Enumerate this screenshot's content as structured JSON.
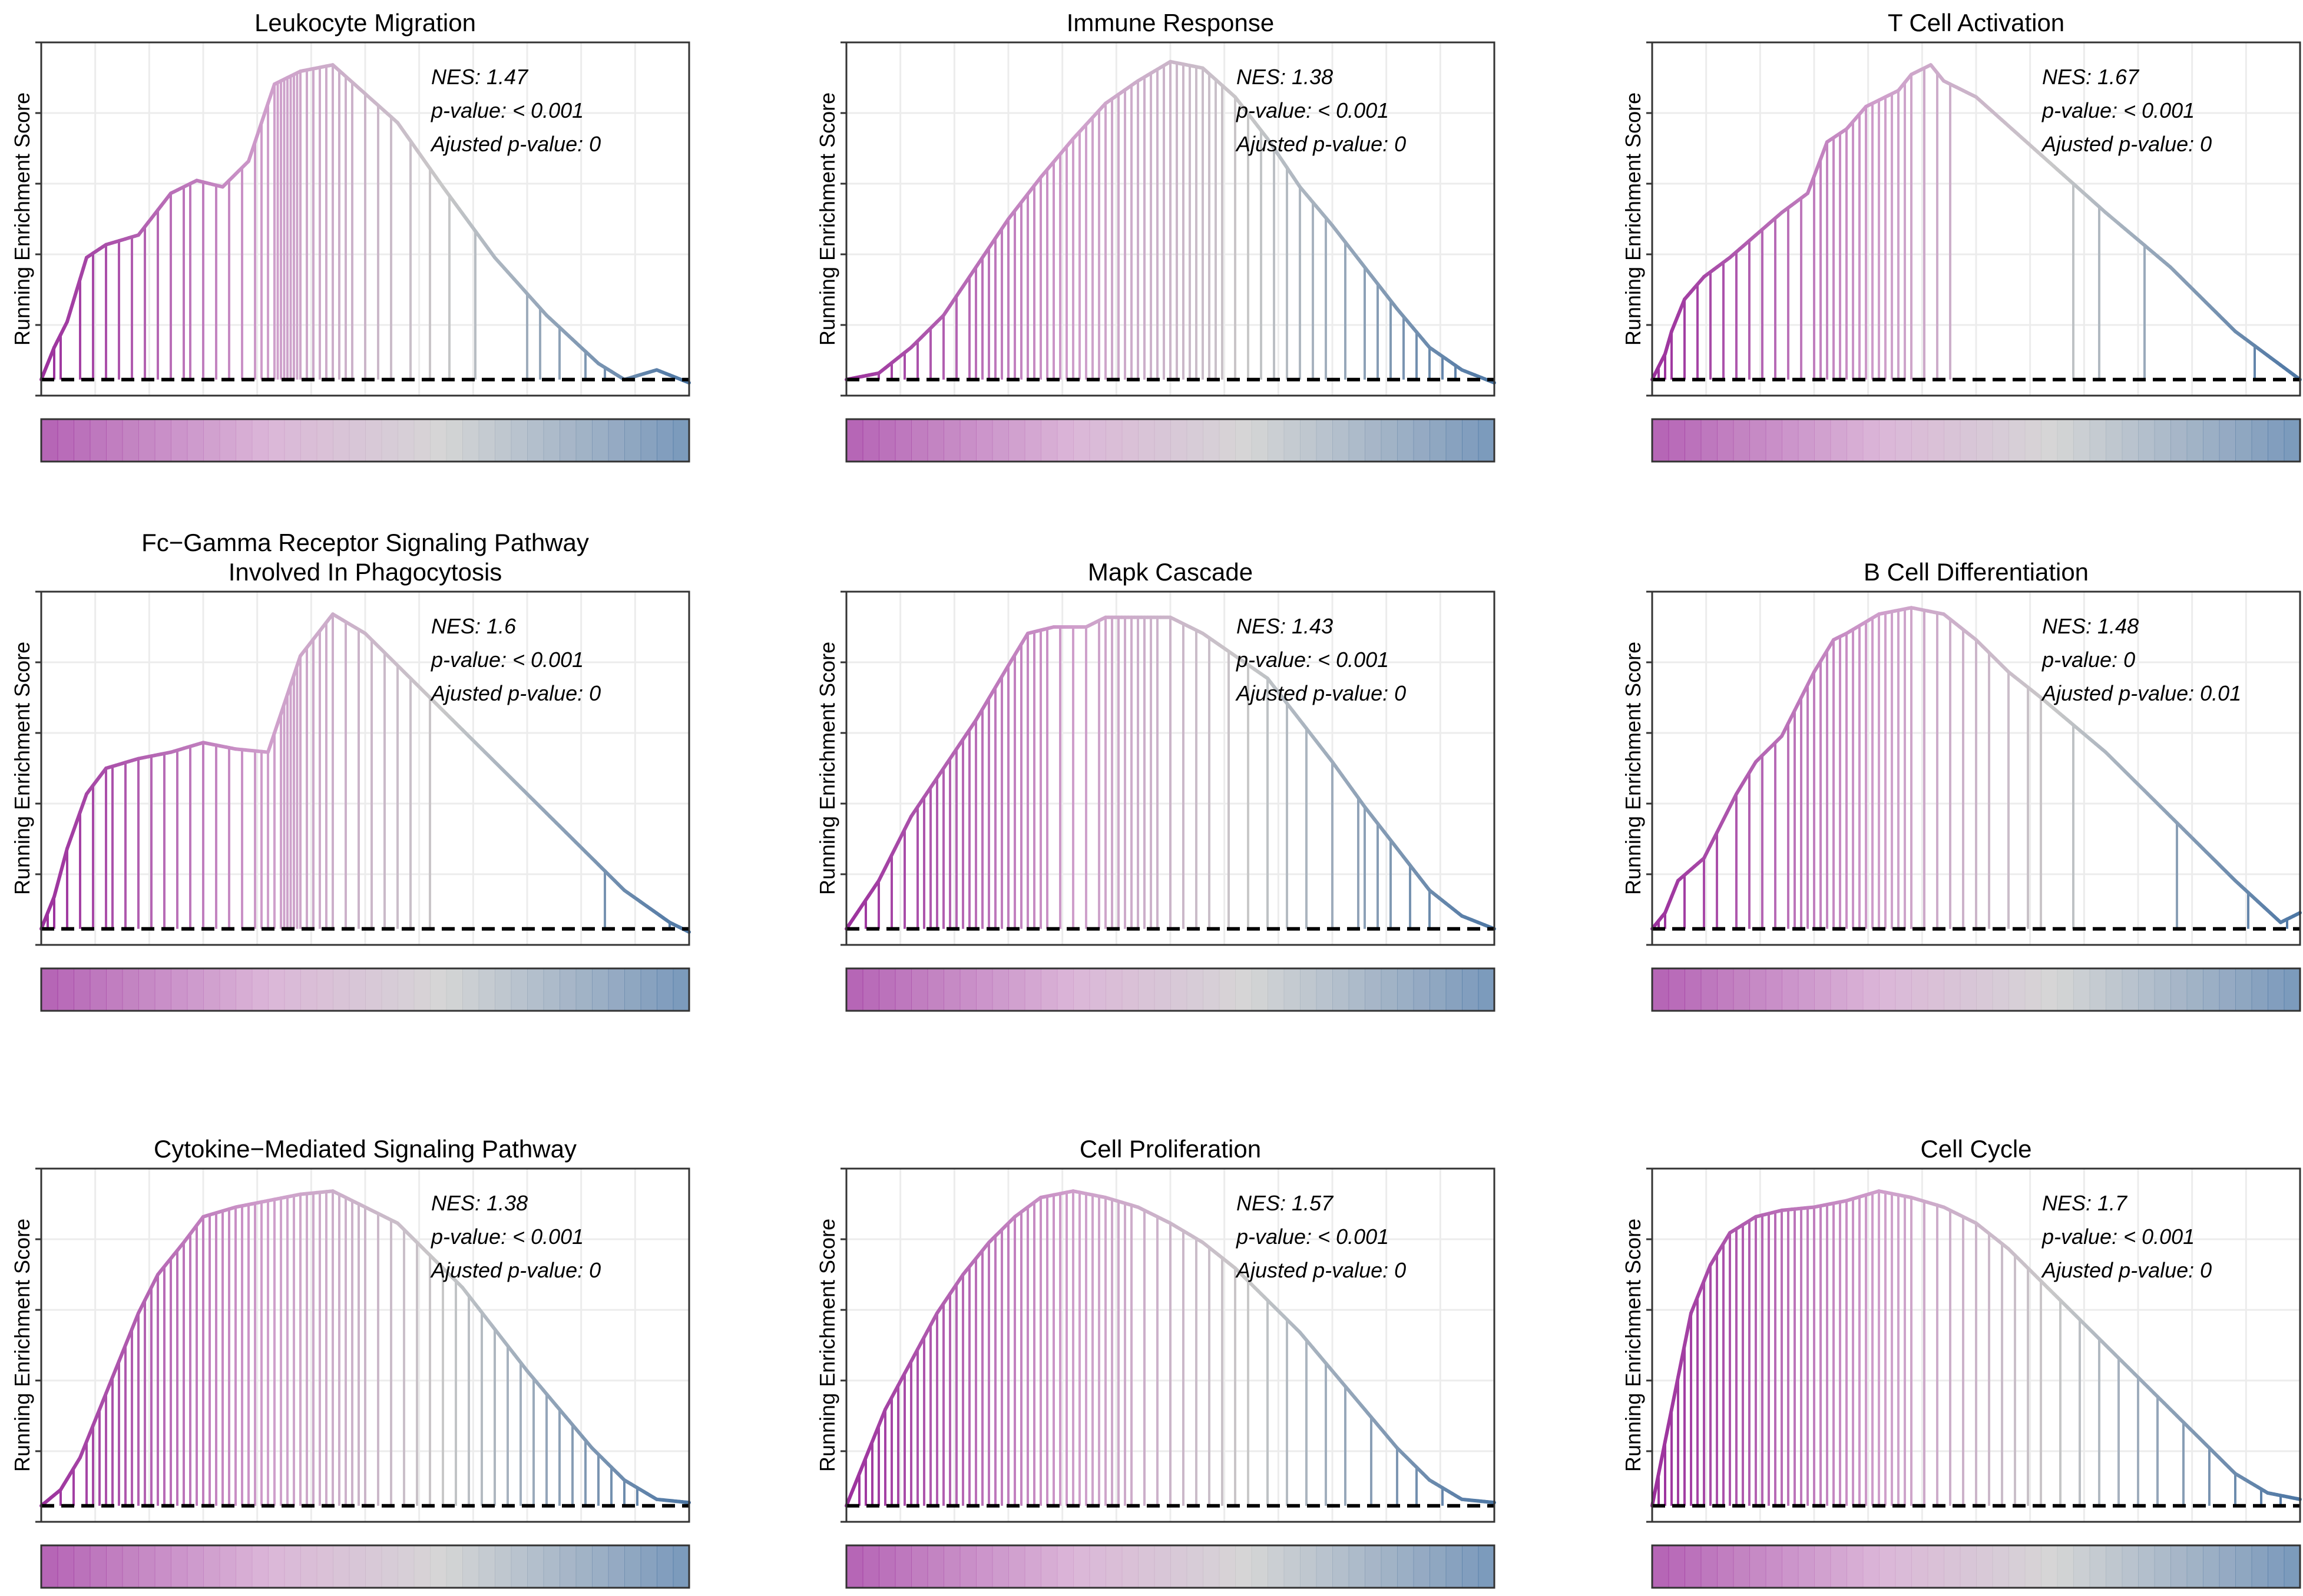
{
  "figure": {
    "ylabel": "Running Enrichment Score",
    "colors": {
      "high": "#9b2f9c",
      "mid_high": "#cf9ecb",
      "neutral": "#c8c8c8",
      "low": "#4c76a4",
      "dashed_line": "#000000"
    }
  },
  "chart_data": [
    {
      "type": "line",
      "title": "Leukocyte Migration",
      "ylabel": "Running Enrichment Score",
      "annotations": {
        "nes": "NES: 1.47",
        "pvalue": "p-value: < 0.001",
        "adj_pvalue": "Ajusted p-value: 0"
      },
      "series": [
        {
          "name": "running_es",
          "x": [
            0,
            0.02,
            0.04,
            0.07,
            0.1,
            0.15,
            0.2,
            0.24,
            0.28,
            0.32,
            0.36,
            0.4,
            0.45,
            0.55,
            0.62,
            0.7,
            0.78,
            0.86,
            0.9,
            0.95,
            1.0
          ],
          "y": [
            0.0,
            0.1,
            0.18,
            0.38,
            0.42,
            0.45,
            0.58,
            0.62,
            0.6,
            0.68,
            0.92,
            0.96,
            0.98,
            0.8,
            0.6,
            0.38,
            0.2,
            0.05,
            0.0,
            0.03,
            -0.01
          ]
        }
      ],
      "hits": [
        0.02,
        0.03,
        0.06,
        0.08,
        0.1,
        0.12,
        0.14,
        0.16,
        0.18,
        0.2,
        0.22,
        0.23,
        0.25,
        0.27,
        0.29,
        0.31,
        0.33,
        0.34,
        0.35,
        0.36,
        0.365,
        0.37,
        0.375,
        0.38,
        0.385,
        0.39,
        0.395,
        0.4,
        0.41,
        0.42,
        0.43,
        0.44,
        0.45,
        0.46,
        0.47,
        0.48,
        0.5,
        0.52,
        0.54,
        0.57,
        0.6,
        0.63,
        0.67,
        0.75,
        0.77,
        0.8,
        0.84,
        0.87
      ],
      "ylim": [
        -0.05,
        1.05
      ]
    },
    {
      "type": "line",
      "title": "Immune Response",
      "ylabel": "Running Enrichment Score",
      "annotations": {
        "nes": "NES: 1.38",
        "pvalue": "p-value: < 0.001",
        "adj_pvalue": "Ajusted p-value: 0"
      },
      "series": [
        {
          "name": "running_es",
          "x": [
            0,
            0.05,
            0.1,
            0.15,
            0.2,
            0.25,
            0.3,
            0.35,
            0.4,
            0.45,
            0.5,
            0.55,
            0.6,
            0.65,
            0.7,
            0.75,
            0.8,
            0.85,
            0.9,
            0.95,
            1.0
          ],
          "y": [
            0.0,
            0.02,
            0.1,
            0.2,
            0.35,
            0.5,
            0.63,
            0.75,
            0.86,
            0.93,
            0.99,
            0.97,
            0.88,
            0.75,
            0.6,
            0.48,
            0.35,
            0.22,
            0.1,
            0.03,
            -0.01
          ]
        }
      ],
      "hits": [
        0.05,
        0.07,
        0.09,
        0.11,
        0.13,
        0.15,
        0.17,
        0.19,
        0.2,
        0.21,
        0.22,
        0.23,
        0.24,
        0.25,
        0.26,
        0.27,
        0.28,
        0.29,
        0.3,
        0.31,
        0.32,
        0.33,
        0.34,
        0.35,
        0.36,
        0.37,
        0.38,
        0.39,
        0.4,
        0.41,
        0.42,
        0.43,
        0.44,
        0.45,
        0.46,
        0.47,
        0.48,
        0.49,
        0.5,
        0.51,
        0.52,
        0.53,
        0.54,
        0.55,
        0.56,
        0.57,
        0.58,
        0.6,
        0.62,
        0.64,
        0.66,
        0.68,
        0.7,
        0.72,
        0.74,
        0.77,
        0.8,
        0.82,
        0.84,
        0.86,
        0.88,
        0.9,
        0.92,
        0.94
      ],
      "ylim": [
        -0.05,
        1.05
      ]
    },
    {
      "type": "line",
      "title": "T Cell Activation",
      "ylabel": "Running Enrichment Score",
      "annotations": {
        "nes": "NES: 1.67",
        "pvalue": "p-value: < 0.001",
        "adj_pvalue": "Ajusted p-value: 0"
      },
      "series": [
        {
          "name": "running_es",
          "x": [
            0,
            0.02,
            0.03,
            0.05,
            0.08,
            0.12,
            0.16,
            0.2,
            0.24,
            0.27,
            0.3,
            0.33,
            0.36,
            0.38,
            0.4,
            0.43,
            0.45,
            0.5,
            0.6,
            0.7,
            0.8,
            0.9,
            1.0
          ],
          "y": [
            0.0,
            0.08,
            0.15,
            0.25,
            0.32,
            0.38,
            0.45,
            0.52,
            0.58,
            0.74,
            0.78,
            0.85,
            0.88,
            0.9,
            0.95,
            0.98,
            0.93,
            0.88,
            0.7,
            0.52,
            0.35,
            0.15,
            0.0
          ]
        }
      ],
      "hits": [
        0.01,
        0.02,
        0.03,
        0.05,
        0.07,
        0.09,
        0.11,
        0.13,
        0.15,
        0.17,
        0.19,
        0.21,
        0.23,
        0.25,
        0.26,
        0.27,
        0.28,
        0.29,
        0.3,
        0.31,
        0.32,
        0.33,
        0.34,
        0.35,
        0.36,
        0.37,
        0.38,
        0.39,
        0.4,
        0.42,
        0.44,
        0.46,
        0.65,
        0.69,
        0.76,
        0.93
      ],
      "ylim": [
        -0.05,
        1.05
      ]
    },
    {
      "type": "line",
      "title": "Fc−Gamma Receptor Signaling Pathway\nInvolved In Phagocytosis",
      "ylabel": "Running Enrichment Score",
      "annotations": {
        "nes": "NES: 1.6",
        "pvalue": "p-value: < 0.001",
        "adj_pvalue": "Ajusted p-value: 0"
      },
      "series": [
        {
          "name": "running_es",
          "x": [
            0,
            0.02,
            0.04,
            0.07,
            0.1,
            0.15,
            0.2,
            0.25,
            0.3,
            0.35,
            0.4,
            0.45,
            0.5,
            0.55,
            0.6,
            0.7,
            0.8,
            0.9,
            0.97,
            1.0
          ],
          "y": [
            0.0,
            0.1,
            0.25,
            0.42,
            0.5,
            0.53,
            0.55,
            0.58,
            0.56,
            0.55,
            0.85,
            0.98,
            0.92,
            0.82,
            0.72,
            0.52,
            0.32,
            0.12,
            0.02,
            -0.01
          ]
        }
      ],
      "hits": [
        0.01,
        0.02,
        0.04,
        0.06,
        0.08,
        0.1,
        0.11,
        0.13,
        0.15,
        0.17,
        0.19,
        0.21,
        0.23,
        0.25,
        0.27,
        0.29,
        0.31,
        0.33,
        0.34,
        0.35,
        0.36,
        0.37,
        0.375,
        0.38,
        0.385,
        0.39,
        0.395,
        0.4,
        0.41,
        0.42,
        0.43,
        0.44,
        0.45,
        0.47,
        0.49,
        0.51,
        0.53,
        0.55,
        0.57,
        0.6,
        0.87,
        0.97
      ],
      "ylim": [
        -0.05,
        1.05
      ]
    },
    {
      "type": "line",
      "title": "Mapk Cascade",
      "ylabel": "Running Enrichment Score",
      "annotations": {
        "nes": "NES: 1.43",
        "pvalue": "p-value: < 0.001",
        "adj_pvalue": "Ajusted p-value: 0"
      },
      "series": [
        {
          "name": "running_es",
          "x": [
            0,
            0.05,
            0.1,
            0.15,
            0.2,
            0.25,
            0.28,
            0.32,
            0.37,
            0.4,
            0.45,
            0.5,
            0.55,
            0.6,
            0.65,
            0.7,
            0.75,
            0.8,
            0.85,
            0.9,
            0.95,
            1.0
          ],
          "y": [
            0.0,
            0.15,
            0.35,
            0.5,
            0.65,
            0.82,
            0.92,
            0.94,
            0.94,
            0.97,
            0.97,
            0.97,
            0.92,
            0.85,
            0.78,
            0.65,
            0.52,
            0.38,
            0.25,
            0.12,
            0.04,
            0.0
          ]
        }
      ],
      "hits": [
        0.03,
        0.05,
        0.07,
        0.09,
        0.11,
        0.12,
        0.13,
        0.14,
        0.15,
        0.16,
        0.17,
        0.18,
        0.19,
        0.2,
        0.21,
        0.22,
        0.23,
        0.24,
        0.25,
        0.26,
        0.27,
        0.28,
        0.29,
        0.3,
        0.31,
        0.33,
        0.35,
        0.37,
        0.39,
        0.4,
        0.41,
        0.42,
        0.43,
        0.44,
        0.45,
        0.46,
        0.47,
        0.48,
        0.5,
        0.52,
        0.54,
        0.56,
        0.59,
        0.62,
        0.65,
        0.68,
        0.71,
        0.75,
        0.79,
        0.8,
        0.82,
        0.84,
        0.87,
        0.9
      ],
      "ylim": [
        -0.05,
        1.05
      ]
    },
    {
      "type": "line",
      "title": "B Cell Differentiation",
      "ylabel": "Running Enrichment Score",
      "annotations": {
        "nes": "NES: 1.48",
        "pvalue": "p-value: 0",
        "adj_pvalue": "Ajusted p-value: 0.01"
      },
      "series": [
        {
          "name": "running_es",
          "x": [
            0,
            0.02,
            0.04,
            0.08,
            0.1,
            0.13,
            0.16,
            0.2,
            0.23,
            0.25,
            0.28,
            0.3,
            0.35,
            0.4,
            0.45,
            0.5,
            0.55,
            0.6,
            0.7,
            0.8,
            0.9,
            0.97,
            1.0
          ],
          "y": [
            0.0,
            0.05,
            0.15,
            0.22,
            0.3,
            0.42,
            0.52,
            0.6,
            0.72,
            0.8,
            0.9,
            0.92,
            0.98,
            1.0,
            0.98,
            0.9,
            0.8,
            0.72,
            0.55,
            0.35,
            0.15,
            0.02,
            0.05
          ]
        }
      ],
      "hits": [
        0.01,
        0.02,
        0.05,
        0.08,
        0.1,
        0.13,
        0.15,
        0.17,
        0.19,
        0.21,
        0.22,
        0.23,
        0.24,
        0.25,
        0.26,
        0.27,
        0.28,
        0.29,
        0.3,
        0.31,
        0.32,
        0.33,
        0.34,
        0.35,
        0.36,
        0.37,
        0.38,
        0.39,
        0.4,
        0.42,
        0.44,
        0.46,
        0.48,
        0.5,
        0.52,
        0.55,
        0.58,
        0.6,
        0.65,
        0.81,
        0.92,
        0.98
      ],
      "ylim": [
        -0.05,
        1.05
      ]
    },
    {
      "type": "line",
      "title": "Cytokine−Mediated Signaling Pathway",
      "ylabel": "Running Enrichment Score",
      "annotations": {
        "nes": "NES: 1.38",
        "pvalue": "p-value: < 0.001",
        "adj_pvalue": "Ajusted p-value: 0"
      },
      "series": [
        {
          "name": "running_es",
          "x": [
            0,
            0.03,
            0.06,
            0.09,
            0.12,
            0.15,
            0.18,
            0.22,
            0.25,
            0.3,
            0.35,
            0.4,
            0.45,
            0.5,
            0.55,
            0.6,
            0.65,
            0.7,
            0.75,
            0.8,
            0.85,
            0.9,
            0.95,
            1.0
          ],
          "y": [
            0.0,
            0.05,
            0.15,
            0.3,
            0.45,
            0.6,
            0.72,
            0.82,
            0.9,
            0.93,
            0.95,
            0.97,
            0.98,
            0.93,
            0.88,
            0.78,
            0.68,
            0.55,
            0.42,
            0.3,
            0.18,
            0.08,
            0.02,
            0.01
          ]
        }
      ],
      "hits": [
        0.03,
        0.05,
        0.07,
        0.08,
        0.09,
        0.1,
        0.11,
        0.12,
        0.13,
        0.14,
        0.15,
        0.16,
        0.17,
        0.18,
        0.19,
        0.2,
        0.21,
        0.22,
        0.23,
        0.24,
        0.25,
        0.26,
        0.27,
        0.28,
        0.29,
        0.3,
        0.31,
        0.32,
        0.33,
        0.34,
        0.35,
        0.36,
        0.37,
        0.38,
        0.39,
        0.4,
        0.41,
        0.42,
        0.43,
        0.44,
        0.45,
        0.46,
        0.47,
        0.48,
        0.49,
        0.5,
        0.52,
        0.54,
        0.56,
        0.58,
        0.6,
        0.62,
        0.64,
        0.66,
        0.68,
        0.7,
        0.72,
        0.74,
        0.76,
        0.78,
        0.8,
        0.82,
        0.84,
        0.86,
        0.88,
        0.9,
        0.92
      ],
      "ylim": [
        -0.05,
        1.05
      ]
    },
    {
      "type": "line",
      "title": "Cell Proliferation",
      "ylabel": "Running Enrichment Score",
      "annotations": {
        "nes": "NES: 1.57",
        "pvalue": "p-value: < 0.001",
        "adj_pvalue": "Ajusted p-value: 0"
      },
      "series": [
        {
          "name": "running_es",
          "x": [
            0,
            0.03,
            0.06,
            0.1,
            0.14,
            0.18,
            0.22,
            0.26,
            0.3,
            0.35,
            0.4,
            0.45,
            0.5,
            0.55,
            0.6,
            0.65,
            0.7,
            0.75,
            0.8,
            0.85,
            0.9,
            0.95,
            1.0
          ],
          "y": [
            0.0,
            0.15,
            0.3,
            0.45,
            0.6,
            0.72,
            0.82,
            0.9,
            0.96,
            0.98,
            0.96,
            0.93,
            0.88,
            0.82,
            0.74,
            0.64,
            0.54,
            0.42,
            0.3,
            0.18,
            0.08,
            0.02,
            0.01
          ]
        }
      ],
      "hits": [
        0.02,
        0.03,
        0.04,
        0.05,
        0.06,
        0.07,
        0.08,
        0.09,
        0.1,
        0.11,
        0.12,
        0.13,
        0.14,
        0.15,
        0.16,
        0.17,
        0.18,
        0.19,
        0.2,
        0.21,
        0.22,
        0.23,
        0.24,
        0.25,
        0.26,
        0.27,
        0.28,
        0.29,
        0.3,
        0.31,
        0.32,
        0.33,
        0.34,
        0.35,
        0.36,
        0.37,
        0.38,
        0.39,
        0.4,
        0.41,
        0.42,
        0.43,
        0.44,
        0.46,
        0.48,
        0.5,
        0.52,
        0.54,
        0.56,
        0.58,
        0.6,
        0.62,
        0.65,
        0.68,
        0.71,
        0.74,
        0.77,
        0.81,
        0.85,
        0.88,
        0.92
      ],
      "ylim": [
        -0.05,
        1.05
      ]
    },
    {
      "type": "line",
      "title": "Cell Cycle",
      "ylabel": "Running Enrichment Score",
      "annotations": {
        "nes": "NES: 1.7",
        "pvalue": "p-value: < 0.001",
        "adj_pvalue": "Ajusted p-value: 0"
      },
      "series": [
        {
          "name": "running_es",
          "x": [
            0,
            0.02,
            0.04,
            0.06,
            0.09,
            0.12,
            0.16,
            0.2,
            0.25,
            0.3,
            0.35,
            0.4,
            0.45,
            0.5,
            0.55,
            0.6,
            0.65,
            0.7,
            0.75,
            0.8,
            0.85,
            0.9,
            0.95,
            1.0
          ],
          "y": [
            0.0,
            0.2,
            0.4,
            0.6,
            0.75,
            0.85,
            0.9,
            0.92,
            0.93,
            0.95,
            0.98,
            0.96,
            0.93,
            0.88,
            0.8,
            0.7,
            0.6,
            0.5,
            0.4,
            0.3,
            0.2,
            0.1,
            0.04,
            0.02
          ]
        }
      ],
      "hits": [
        0.01,
        0.02,
        0.03,
        0.04,
        0.05,
        0.06,
        0.07,
        0.08,
        0.09,
        0.1,
        0.11,
        0.12,
        0.13,
        0.14,
        0.15,
        0.16,
        0.17,
        0.18,
        0.19,
        0.2,
        0.21,
        0.22,
        0.23,
        0.24,
        0.25,
        0.26,
        0.27,
        0.28,
        0.29,
        0.3,
        0.31,
        0.32,
        0.33,
        0.34,
        0.35,
        0.36,
        0.37,
        0.38,
        0.39,
        0.4,
        0.42,
        0.44,
        0.46,
        0.48,
        0.5,
        0.52,
        0.54,
        0.56,
        0.58,
        0.6,
        0.63,
        0.66,
        0.69,
        0.72,
        0.75,
        0.78,
        0.82,
        0.86,
        0.9,
        0.94,
        0.97
      ],
      "ylim": [
        -0.05,
        1.05
      ]
    }
  ]
}
